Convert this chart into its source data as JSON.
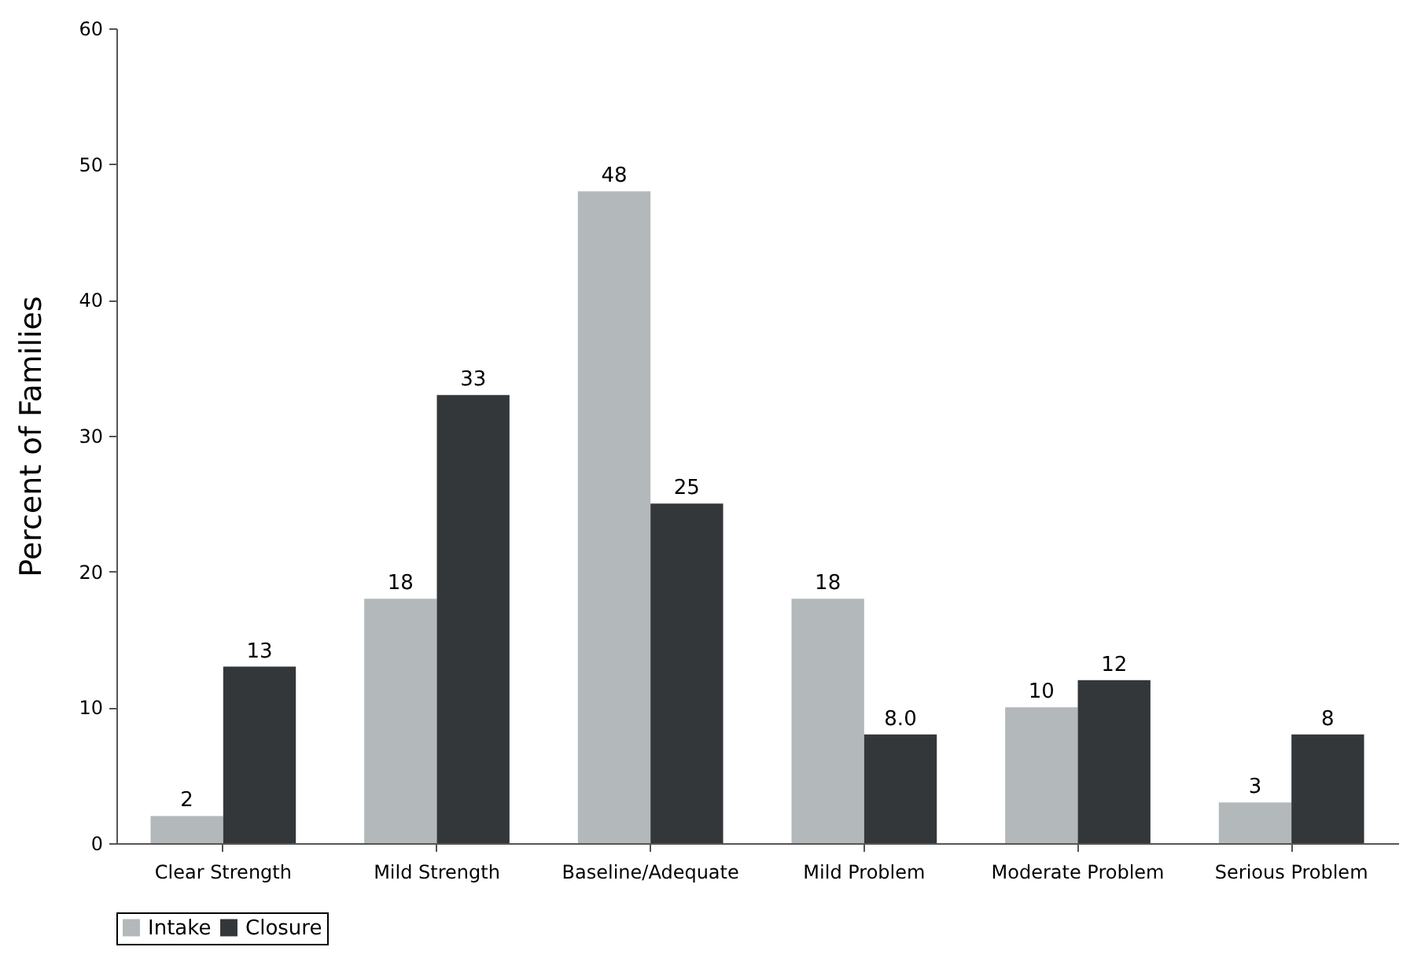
{
  "chart_data": {
    "type": "bar",
    "ylabel": "Percent of Families",
    "categories": [
      "Clear Strength",
      "Mild Strength",
      "Baseline/Adequate",
      "Mild Problem",
      "Moderate Problem",
      "Serious Problem"
    ],
    "series": [
      {
        "name": "Intake",
        "color": "#b3b8bb",
        "values": [
          2,
          18,
          48,
          18,
          10,
          3
        ],
        "value_labels": [
          "2",
          "18",
          "48",
          "18",
          "10",
          "3"
        ]
      },
      {
        "name": "Closure",
        "color": "#33373a",
        "values": [
          13,
          33,
          25,
          8,
          12,
          8
        ],
        "value_labels": [
          "13",
          "33",
          "25",
          "8.0",
          "12",
          "8"
        ]
      }
    ],
    "ylim": [
      0,
      60
    ],
    "yticks": [
      0,
      10,
      20,
      30,
      40,
      50,
      60
    ],
    "grid": false,
    "legend": "bottom"
  }
}
